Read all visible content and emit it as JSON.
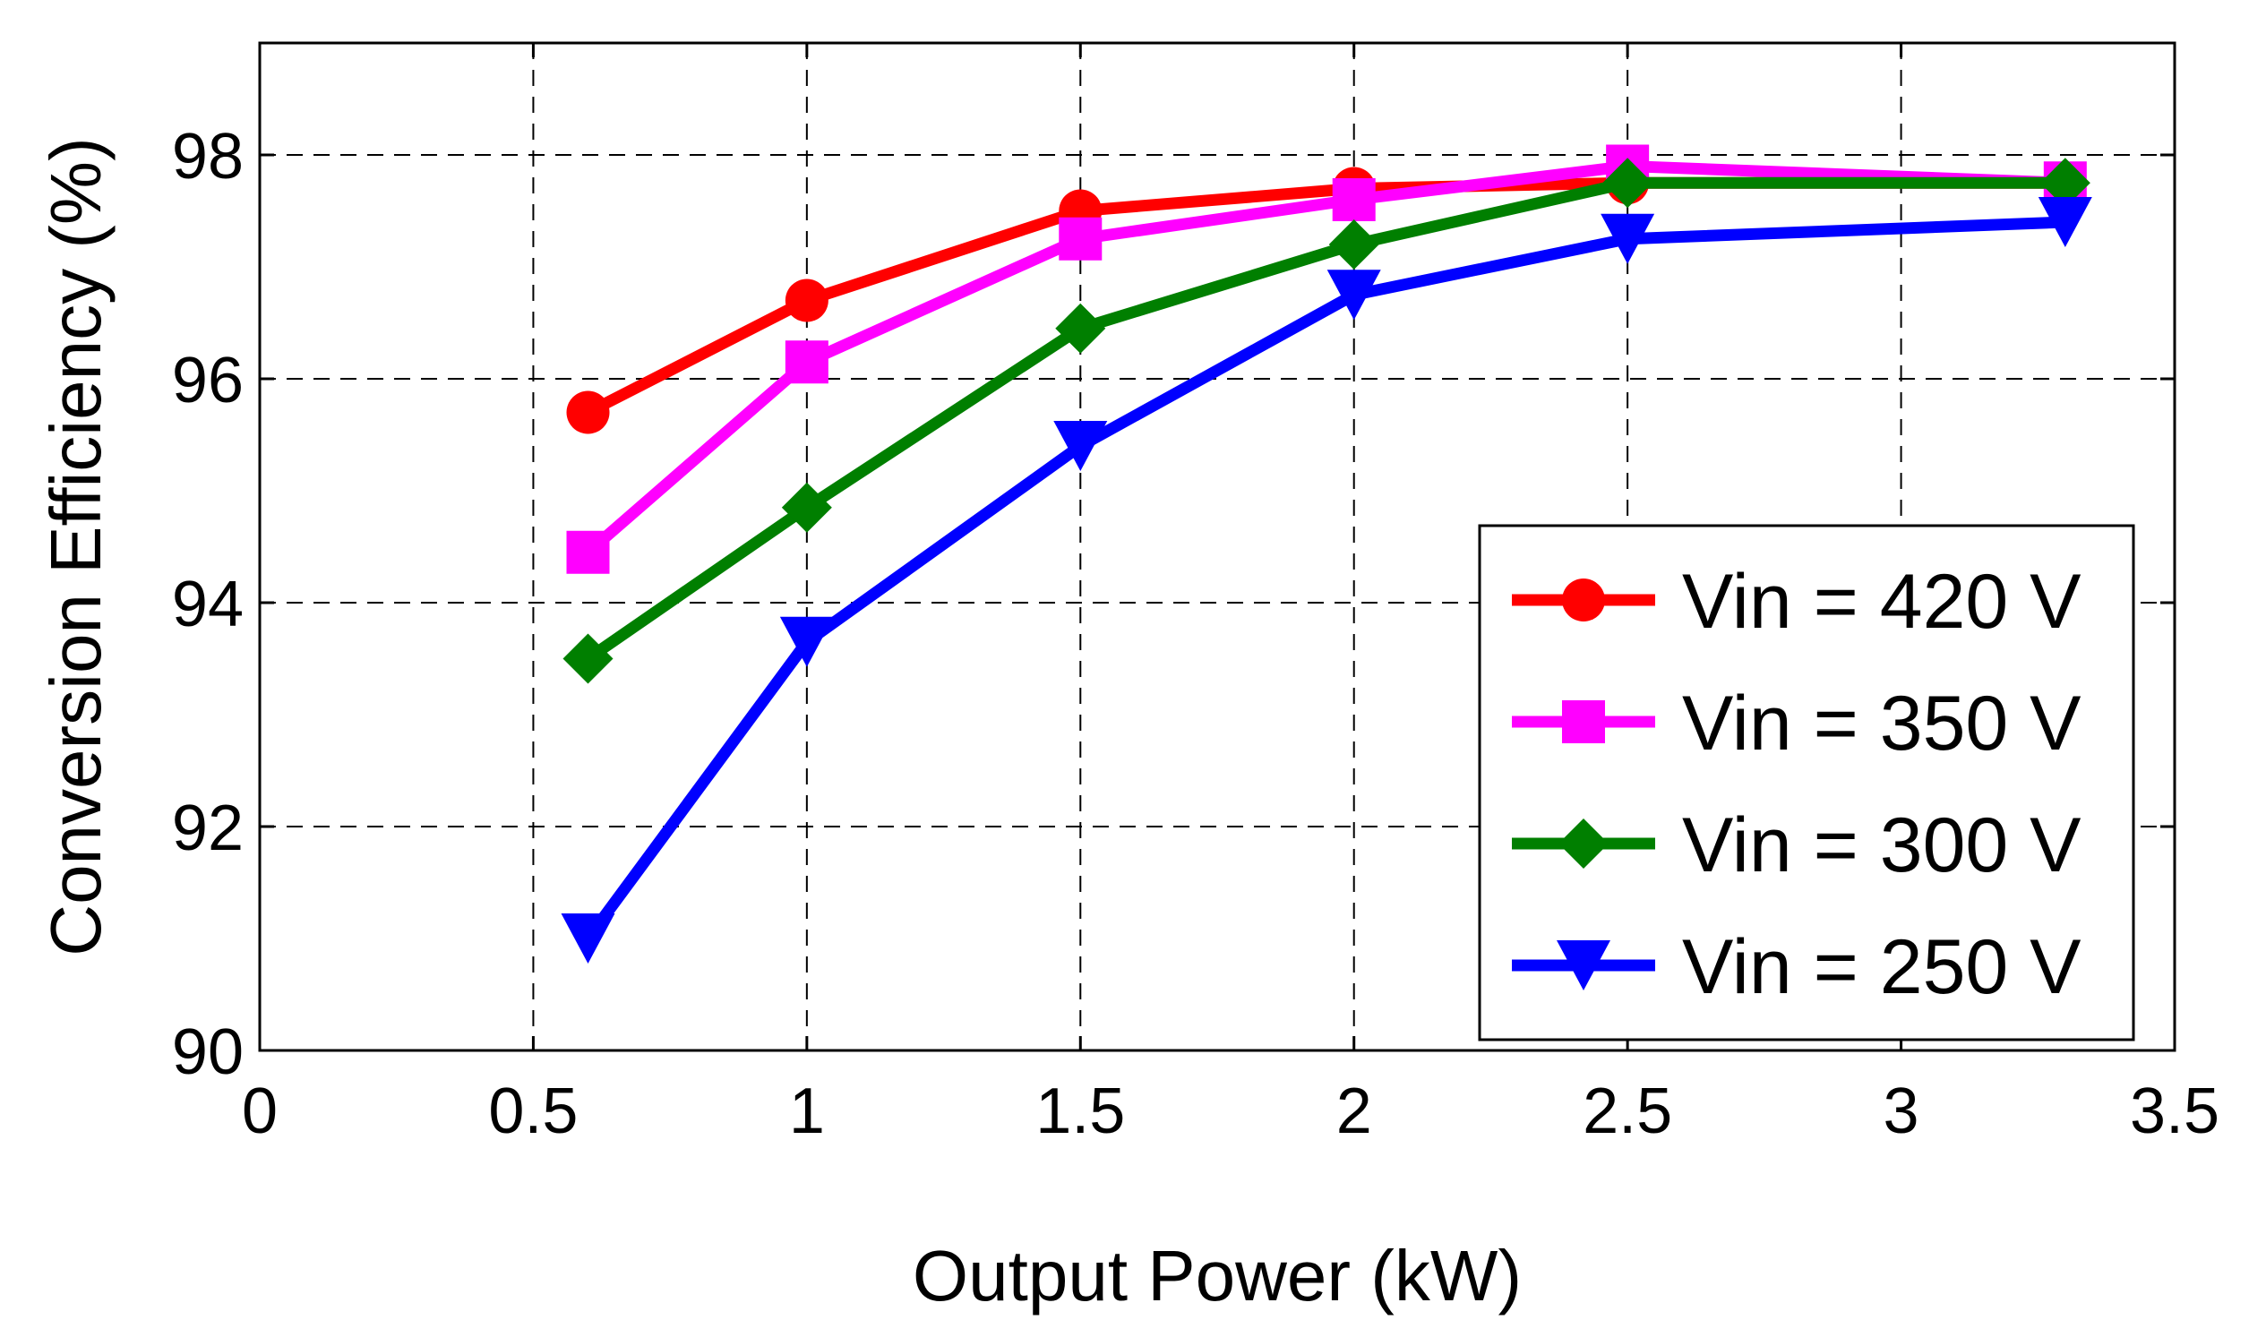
{
  "chart_data": {
    "type": "line",
    "title": "",
    "xlabel": "Output Power (kW)",
    "ylabel": "Conversion Efficiency (%)",
    "xlim": [
      0,
      3.5
    ],
    "ylim": [
      90,
      99
    ],
    "xticks": [
      0,
      0.5,
      1,
      1.5,
      2,
      2.5,
      3,
      3.5
    ],
    "xtick_labels": [
      "0",
      "0.5",
      "1",
      "1.5",
      "2",
      "2.5",
      "3",
      "3.5"
    ],
    "yticks": [
      90,
      92,
      94,
      96,
      98
    ],
    "ytick_labels": [
      "90",
      "92",
      "94",
      "96",
      "98"
    ],
    "grid": true,
    "legend_position": "right",
    "series": [
      {
        "name": "Vin = 420 V",
        "color": "#ff0000",
        "marker": "circle",
        "x": [
          0.6,
          1.0,
          1.5,
          2.0,
          2.5,
          3.3
        ],
        "y": [
          95.7,
          96.7,
          97.5,
          97.7,
          97.75,
          97.75
        ]
      },
      {
        "name": "Vin = 350 V",
        "color": "#ff00ff",
        "marker": "square",
        "x": [
          0.6,
          1.0,
          1.5,
          2.0,
          2.5,
          3.3
        ],
        "y": [
          94.45,
          96.15,
          97.25,
          97.6,
          97.9,
          97.75
        ]
      },
      {
        "name": "Vin = 300 V",
        "color": "#007f00",
        "marker": "diamond",
        "x": [
          0.6,
          1.0,
          1.5,
          2.0,
          2.5,
          3.3
        ],
        "y": [
          93.5,
          94.85,
          96.45,
          97.2,
          97.75,
          97.75
        ]
      },
      {
        "name": "Vin = 250 V",
        "color": "#0000ff",
        "marker": "triangle-down",
        "x": [
          0.6,
          1.0,
          1.5,
          2.0,
          2.5,
          3.3
        ],
        "y": [
          91.0,
          93.65,
          95.4,
          96.75,
          97.25,
          97.4
        ]
      }
    ]
  }
}
